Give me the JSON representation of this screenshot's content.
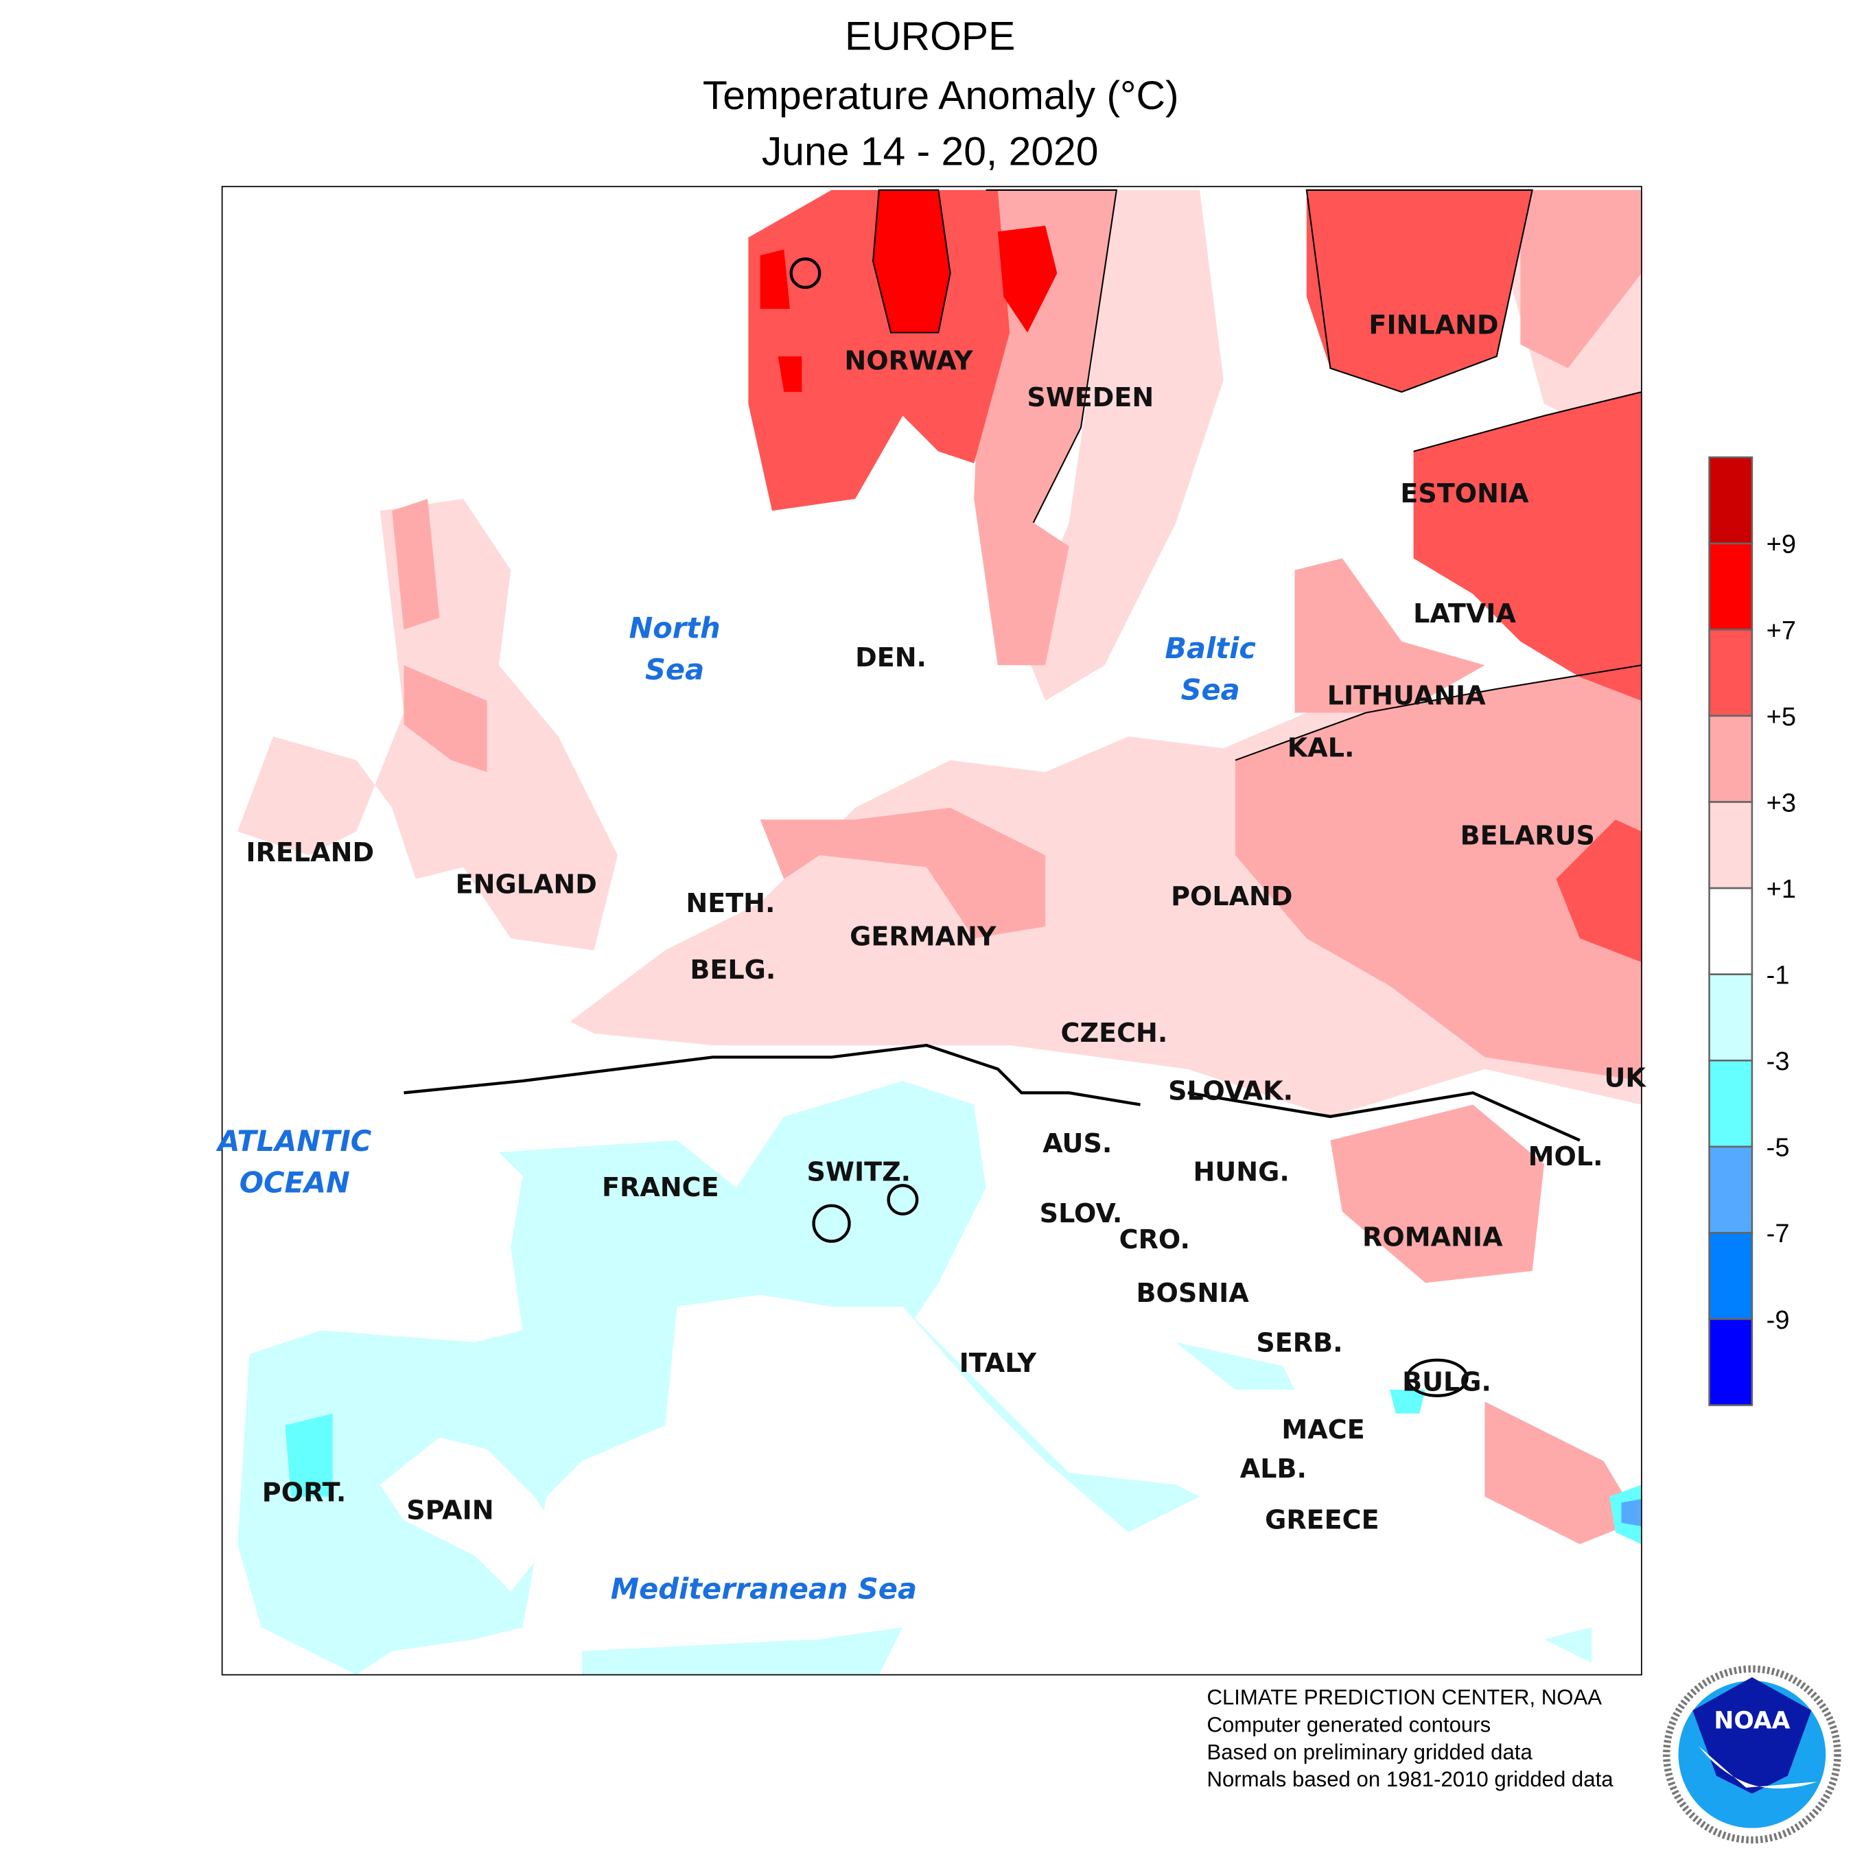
{
  "title": {
    "line1": "EUROPE",
    "line2": "Temperature Anomaly (°C)",
    "line3": "June 14 - 20, 2020"
  },
  "legend": {
    "ticks": [
      "+9",
      "+7",
      "+5",
      "+3",
      "+1",
      "-1",
      "-3",
      "-5",
      "-7",
      "-9"
    ],
    "colors": [
      "#cc0000",
      "#ff0000",
      "#ff5555",
      "#ffaaaa",
      "#ffdada",
      "#ffffff",
      "#ccffff",
      "#66ffff",
      "#55aaff",
      "#0080ff",
      "#0000ff"
    ]
  },
  "countries": [
    "NORWAY",
    "SWEDEN",
    "FINLAND",
    "ESTONIA",
    "LATVIA",
    "LITHUANIA",
    "KAL.",
    "BELARUS",
    "POLAND",
    "DEN.",
    "GERMANY",
    "NETH.",
    "BELG.",
    "ENGLAND",
    "IRELAND",
    "CZECH.",
    "SLOVAK.",
    "UK",
    "AUS.",
    "HUNG.",
    "MOL.",
    "FRANCE",
    "SWITZ.",
    "SLOV.",
    "CRO.",
    "ROMANIA",
    "BOSNIA",
    "SERB.",
    "ITALY",
    "BULG.",
    "MACE",
    "ALB.",
    "GREECE",
    "PORT.",
    "SPAIN"
  ],
  "seas": {
    "north1": "North",
    "north2": "Sea",
    "baltic1": "Baltic",
    "baltic2": "Sea",
    "atl1": "ATLANTIC",
    "atl2": "OCEAN",
    "med": "Mediterranean Sea"
  },
  "footer": [
    "CLIMATE PREDICTION CENTER, NOAA",
    "Computer generated contours",
    "Based on preliminary gridded data",
    "Normals based on 1981-2010 gridded data"
  ],
  "logo": {
    "text": "NOAA",
    "ring": "NATIONAL OCEANIC AND ATMOSPHERIC ADMINISTRATION · U.S. DEPARTMENT OF COMMERCE"
  }
}
